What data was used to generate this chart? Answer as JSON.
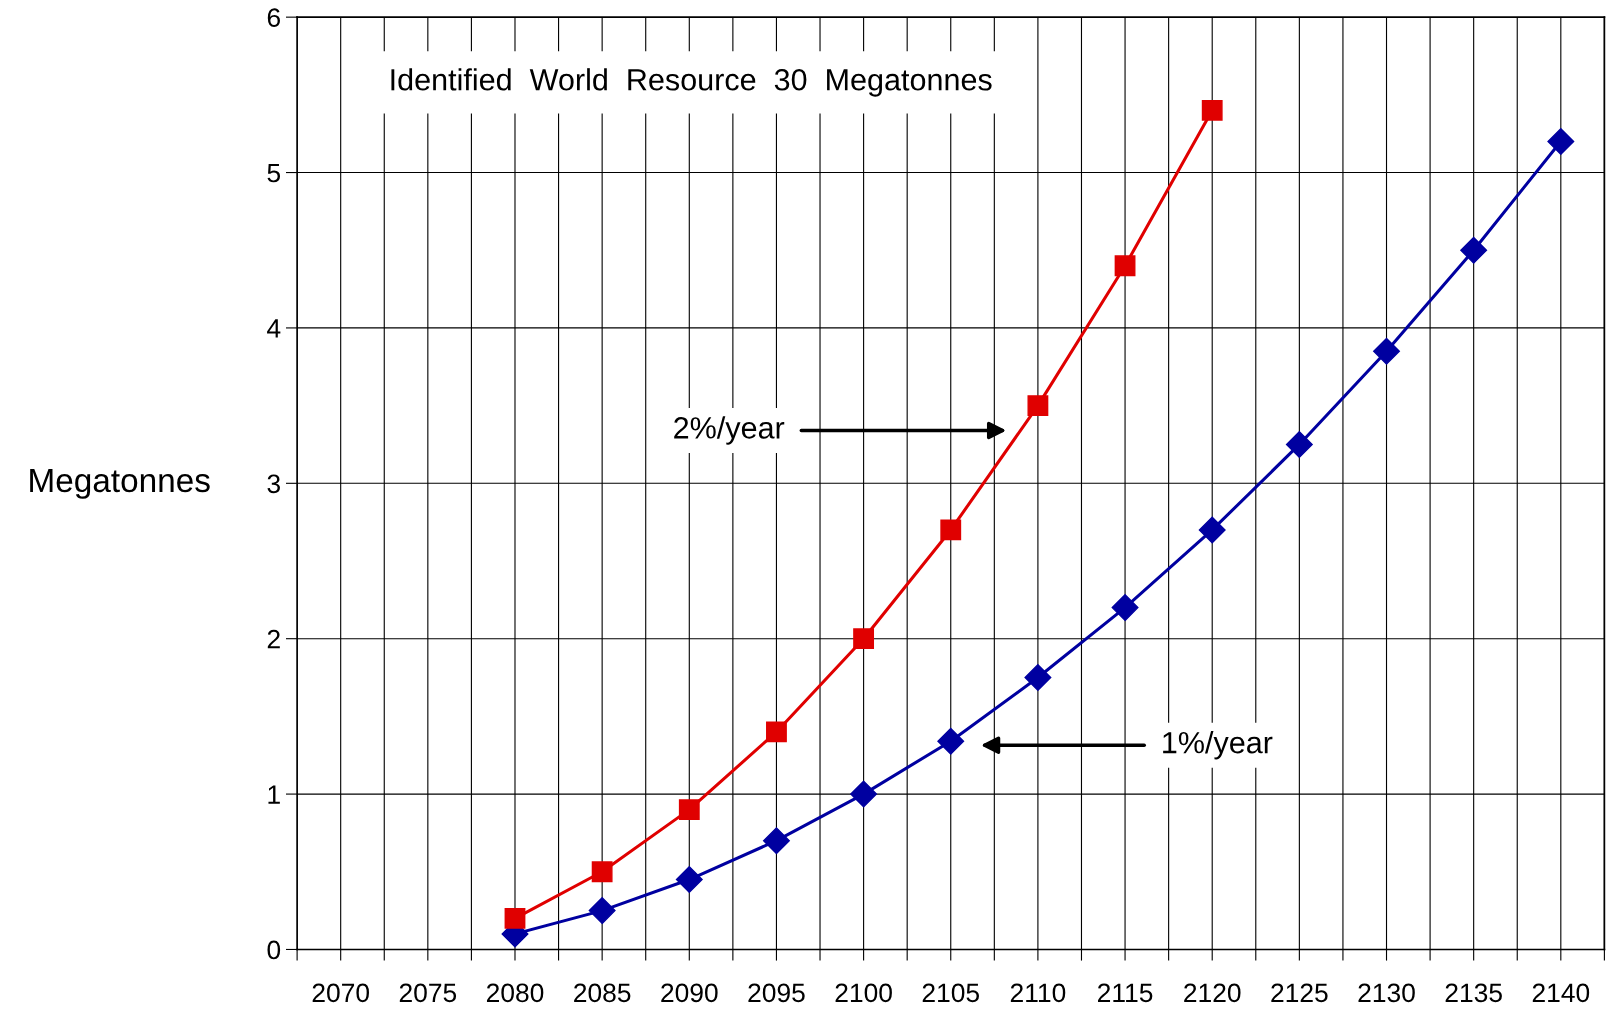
{
  "chart_data": {
    "type": "line",
    "title": "Identified  World  Resource  30  Megatonnes",
    "ylabel": "Megatonnes",
    "x": [
      2080,
      2085,
      2090,
      2095,
      2100,
      2105,
      2110,
      2115,
      2120,
      2125,
      2130,
      2135,
      2140
    ],
    "series": [
      {
        "color": "#0000a0",
        "marker": "diamond",
        "values": [
          0.1,
          0.25,
          0.45,
          0.7,
          1.0,
          1.34,
          1.75,
          2.2,
          2.7,
          3.25,
          3.85,
          4.5,
          5.2
        ]
      },
      {
        "color": "#e00000",
        "marker": "square",
        "values": [
          0.2,
          0.5,
          0.9,
          1.4,
          2.0,
          2.7,
          3.5,
          4.4,
          5.4,
          null,
          null,
          null,
          null
        ]
      }
    ],
    "annotations": [
      "2%/year",
      "1%/year"
    ],
    "xlim": [
      2067.5,
      2142.5
    ],
    "xticks": [
      {
        "value": 2067.5,
        "label": null
      },
      2070,
      {
        "value": 2072.5,
        "label": null
      },
      2075,
      {
        "value": 2077.5,
        "label": null
      },
      2080,
      {
        "value": 2082.5,
        "label": null
      },
      2085,
      {
        "value": 2087.5,
        "label": null
      },
      2090,
      {
        "value": 2092.5,
        "label": null
      },
      2095,
      {
        "value": 2097.5,
        "label": null
      },
      2100,
      {
        "value": 2102.5,
        "label": null
      },
      2105,
      {
        "value": 2107.5,
        "label": null
      },
      2110,
      {
        "value": 2112.5,
        "label": null
      },
      2115,
      {
        "value": 2117.5,
        "label": null
      },
      2120,
      {
        "value": 2122.5,
        "label": null
      },
      2125,
      {
        "value": 2127.5,
        "label": null
      },
      2130,
      {
        "value": 2132.5,
        "label": null
      },
      2135,
      {
        "value": 2137.5,
        "label": null
      },
      2140,
      {
        "value": 2142.5,
        "label": null
      }
    ],
    "ylim": [
      0,
      6
    ],
    "yticks": [
      0,
      1,
      2,
      3,
      4,
      5,
      6
    ],
    "grid": true,
    "legend": false
  }
}
